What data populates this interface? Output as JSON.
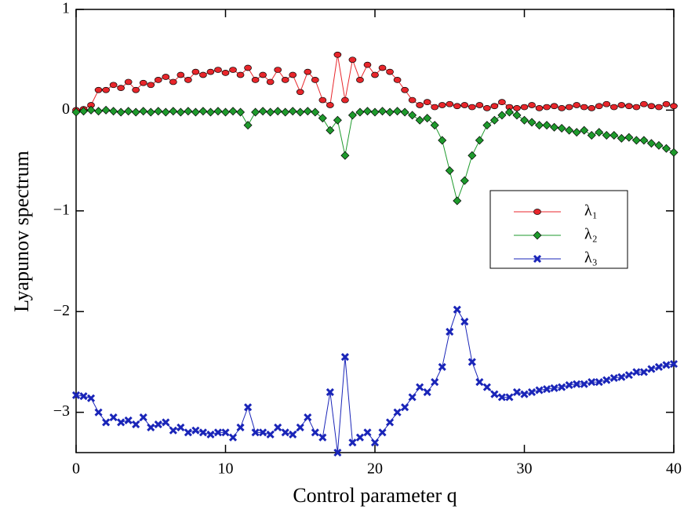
{
  "chart_data": {
    "type": "line",
    "xlabel": "Control parameter q",
    "ylabel": "Lyapunov spectrum",
    "xlim": [
      0,
      40
    ],
    "ylim": [
      -3.4,
      1
    ],
    "xticks": [
      0,
      10,
      20,
      30,
      40
    ],
    "yticks": [
      {
        "value": -3,
        "label": "−3"
      },
      {
        "value": -2,
        "label": "−2"
      },
      {
        "value": -1,
        "label": "−1"
      },
      0,
      1
    ],
    "x": [
      0,
      0.5,
      1,
      1.5,
      2,
      2.5,
      3,
      3.5,
      4,
      4.5,
      5,
      5.5,
      6,
      6.5,
      7,
      7.5,
      8,
      8.5,
      9,
      9.5,
      10,
      10.5,
      11,
      11.5,
      12,
      12.5,
      13,
      13.5,
      14,
      14.5,
      15,
      15.5,
      16,
      16.5,
      17,
      17.5,
      18,
      18.5,
      19,
      19.5,
      20,
      20.5,
      21,
      21.5,
      22,
      22.5,
      23,
      23.5,
      24,
      24.5,
      25,
      25.5,
      26,
      26.5,
      27,
      27.5,
      28,
      28.5,
      29,
      29.5,
      30,
      30.5,
      31,
      31.5,
      32,
      32.5,
      33,
      33.5,
      34,
      34.5,
      35,
      35.5,
      36,
      36.5,
      37,
      37.5,
      38,
      38.5,
      39,
      39.5,
      40
    ],
    "series": [
      {
        "name": "λ₁",
        "color": "#e8262b",
        "marker": "circle",
        "values": [
          0,
          0.01,
          0.05,
          0.2,
          0.2,
          0.25,
          0.22,
          0.28,
          0.2,
          0.27,
          0.25,
          0.3,
          0.33,
          0.28,
          0.35,
          0.3,
          0.38,
          0.35,
          0.38,
          0.4,
          0.37,
          0.4,
          0.35,
          0.42,
          0.3,
          0.35,
          0.28,
          0.4,
          0.3,
          0.35,
          0.18,
          0.38,
          0.3,
          0.1,
          0.05,
          0.55,
          0.1,
          0.5,
          0.3,
          0.45,
          0.35,
          0.42,
          0.38,
          0.3,
          0.2,
          0.1,
          0.05,
          0.08,
          0.03,
          0.05,
          0.06,
          0.04,
          0.05,
          0.03,
          0.05,
          0.02,
          0.04,
          0.08,
          0.03,
          0.02,
          0.03,
          0.05,
          0.02,
          0.03,
          0.04,
          0.02,
          0.03,
          0.05,
          0.03,
          0.02,
          0.04,
          0.06,
          0.03,
          0.05,
          0.04,
          0.03,
          0.06,
          0.04,
          0.03,
          0.06,
          0.04
        ]
      },
      {
        "name": "λ₂",
        "color": "#1e9a2c",
        "marker": "diamond",
        "values": [
          -0.02,
          -0.01,
          0,
          -0.01,
          0,
          -0.01,
          -0.02,
          -0.01,
          -0.02,
          -0.01,
          -0.02,
          -0.01,
          -0.02,
          -0.01,
          -0.02,
          -0.01,
          -0.02,
          -0.01,
          -0.02,
          -0.01,
          -0.02,
          -0.01,
          -0.02,
          -0.15,
          -0.02,
          -0.01,
          -0.02,
          -0.01,
          -0.02,
          -0.01,
          -0.02,
          -0.01,
          -0.02,
          -0.08,
          -0.2,
          -0.1,
          -0.45,
          -0.05,
          -0.02,
          -0.01,
          -0.02,
          -0.01,
          -0.02,
          -0.01,
          -0.02,
          -0.05,
          -0.1,
          -0.08,
          -0.15,
          -0.3,
          -0.6,
          -0.9,
          -0.7,
          -0.45,
          -0.3,
          -0.15,
          -0.1,
          -0.05,
          -0.02,
          -0.05,
          -0.1,
          -0.12,
          -0.15,
          -0.15,
          -0.17,
          -0.18,
          -0.2,
          -0.22,
          -0.2,
          -0.25,
          -0.22,
          -0.25,
          -0.25,
          -0.28,
          -0.27,
          -0.3,
          -0.3,
          -0.33,
          -0.35,
          -0.38,
          -0.42
        ]
      },
      {
        "name": "λ₃",
        "color": "#1a25b8",
        "marker": "x",
        "values": [
          -2.83,
          -2.84,
          -2.86,
          -3.0,
          -3.1,
          -3.05,
          -3.1,
          -3.08,
          -3.12,
          -3.05,
          -3.15,
          -3.12,
          -3.1,
          -3.18,
          -3.15,
          -3.2,
          -3.18,
          -3.2,
          -3.22,
          -3.2,
          -3.2,
          -3.25,
          -3.15,
          -2.95,
          -3.2,
          -3.2,
          -3.22,
          -3.15,
          -3.2,
          -3.22,
          -3.15,
          -3.05,
          -3.2,
          -3.25,
          -2.8,
          -3.4,
          -2.45,
          -3.3,
          -3.25,
          -3.2,
          -3.3,
          -3.2,
          -3.1,
          -3.0,
          -2.95,
          -2.85,
          -2.75,
          -2.8,
          -2.7,
          -2.55,
          -2.2,
          -1.98,
          -2.1,
          -2.5,
          -2.7,
          -2.75,
          -2.82,
          -2.85,
          -2.85,
          -2.8,
          -2.82,
          -2.8,
          -2.78,
          -2.77,
          -2.76,
          -2.75,
          -2.73,
          -2.72,
          -2.72,
          -2.7,
          -2.7,
          -2.68,
          -2.66,
          -2.65,
          -2.63,
          -2.6,
          -2.6,
          -2.57,
          -2.55,
          -2.53,
          -2.52
        ]
      }
    ]
  }
}
